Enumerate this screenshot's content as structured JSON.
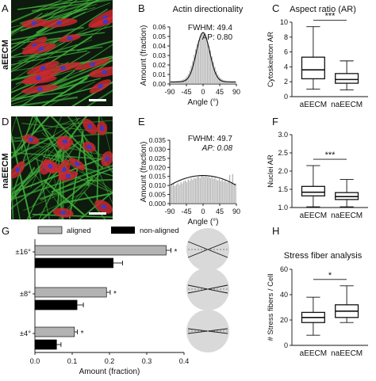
{
  "colors": {
    "bar_light": "#b3b3b3",
    "bar_dark": "#000000",
    "box_fill": "#ffffff",
    "micro_red": "#c8282e",
    "micro_green": "#3fae3a",
    "micro_blue": "#3a3ad0",
    "inset_circle": "#d9d9d9"
  },
  "panels": {
    "A": {
      "letter": "A",
      "side_label": "aEECM"
    },
    "D": {
      "letter": "D",
      "side_label": "naEECM"
    },
    "G": {
      "letter": "G"
    },
    "B": {
      "letter": "B",
      "title": "Actin directionality",
      "fwhm": "FWHM: 49.4",
      "ap": "AP: 0.80"
    },
    "E": {
      "letter": "E",
      "fwhm": "FWHM: 49.7",
      "ap": "AP: 0.08"
    },
    "C": {
      "letter": "C",
      "title": "Aspect ratio (AR)",
      "sig": "***"
    },
    "F": {
      "letter": "F",
      "sig": "***"
    },
    "H": {
      "letter": "H",
      "title": "Stress fiber analysis",
      "sig": "*"
    }
  },
  "chart_data": [
    {
      "panel": "B",
      "type": "bar",
      "title": "Actin directionality",
      "xlabel": "Angle (°)",
      "ylabel": "Amount (fraction)",
      "xlim": [
        -90,
        90
      ],
      "ylim": [
        0,
        0.06
      ],
      "xticks": [
        "-90",
        "-45",
        "0",
        "45",
        "90"
      ],
      "yticks": [
        "0.00",
        "0.01",
        "0.02",
        "0.03",
        "0.04",
        "0.05",
        "0.06"
      ],
      "x": [
        -88,
        -84,
        -80,
        -76,
        -72,
        -68,
        -64,
        -60,
        -56,
        -52,
        -48,
        -44,
        -40,
        -36,
        -32,
        -28,
        -24,
        -20,
        -16,
        -12,
        -8,
        -4,
        0,
        4,
        8,
        12,
        16,
        20,
        24,
        28,
        32,
        36,
        40,
        44,
        48,
        52,
        56,
        60,
        64,
        68,
        72,
        76,
        80,
        84,
        88
      ],
      "values": [
        0.0022,
        0.0024,
        0.0025,
        0.0026,
        0.0028,
        0.003,
        0.0033,
        0.0036,
        0.0044,
        0.005,
        0.0062,
        0.0078,
        0.0104,
        0.014,
        0.019,
        0.0244,
        0.031,
        0.0365,
        0.042,
        0.046,
        0.05,
        0.0535,
        0.054,
        0.052,
        0.0485,
        0.045,
        0.04,
        0.035,
        0.029,
        0.0235,
        0.018,
        0.0135,
        0.0098,
        0.0075,
        0.0058,
        0.0048,
        0.004,
        0.0035,
        0.003,
        0.0027,
        0.0025,
        0.0024,
        0.0022,
        0.0022,
        0.0021
      ]
    },
    {
      "panel": "E",
      "type": "bar",
      "xlabel": "Angle (°)",
      "ylabel": "Amount (fraction)",
      "xlim": [
        -90,
        90
      ],
      "ylim": [
        0,
        0.035
      ],
      "xticks": [
        "-90",
        "-45",
        "0",
        "45",
        "90"
      ],
      "yticks": [
        "0.000",
        "0.005",
        "0.010",
        "0.015",
        "0.020",
        "0.025",
        "0.030",
        "0.035"
      ],
      "x": [
        -88,
        -84,
        -80,
        -76,
        -72,
        -68,
        -64,
        -60,
        -56,
        -52,
        -48,
        -44,
        -40,
        -36,
        -32,
        -28,
        -24,
        -20,
        -16,
        -12,
        -8,
        -4,
        0,
        4,
        8,
        12,
        16,
        20,
        24,
        28,
        32,
        36,
        40,
        44,
        48,
        52,
        56,
        60,
        64,
        68,
        72,
        76,
        80,
        84,
        88
      ],
      "values": [
        0.0095,
        0.0102,
        0.011,
        0.0097,
        0.0106,
        0.0113,
        0.0104,
        0.0118,
        0.0112,
        0.0124,
        0.0128,
        0.0119,
        0.0134,
        0.0126,
        0.0139,
        0.0132,
        0.0143,
        0.0138,
        0.0147,
        0.015,
        0.0142,
        0.0155,
        0.0153,
        0.0148,
        0.0157,
        0.0146,
        0.0152,
        0.0141,
        0.0149,
        0.0137,
        0.0144,
        0.0133,
        0.0128,
        0.0136,
        0.0125,
        0.0131,
        0.0122,
        0.0127,
        0.0117,
        0.012,
        0.0158,
        0.0113,
        0.0163,
        0.0108,
        0.0112
      ]
    },
    {
      "panel": "C",
      "type": "box",
      "ylabel": "Cytoskeleton AR",
      "categories": [
        "aEECM",
        "naEECM"
      ],
      "ylim": [
        0,
        10
      ],
      "yticks": [
        "0",
        "2",
        "4",
        "6",
        "8",
        "10"
      ],
      "boxes": [
        {
          "min": 1.0,
          "q1": 2.4,
          "median": 3.6,
          "q3": 5.3,
          "max": 9.4
        },
        {
          "min": 0.9,
          "q1": 1.8,
          "median": 2.3,
          "q3": 3.1,
          "max": 4.8
        }
      ]
    },
    {
      "panel": "F",
      "type": "box",
      "ylabel": "Nuclei AR",
      "categories": [
        "aEECM",
        "naEECM"
      ],
      "ylim": [
        1.0,
        3.0
      ],
      "yticks": [
        "1.0",
        "1.5",
        "2.0",
        "2.5",
        "3.0"
      ],
      "boxes": [
        {
          "min": 1.02,
          "q1": 1.32,
          "median": 1.42,
          "q3": 1.58,
          "max": 2.15
        },
        {
          "min": 1.02,
          "q1": 1.22,
          "median": 1.3,
          "q3": 1.41,
          "max": 1.77
        }
      ]
    },
    {
      "panel": "H",
      "type": "box",
      "title": "Stress fiber analysis",
      "ylabel": "# Stress fibers / Cell",
      "categories": [
        "aEECM",
        "naEECM"
      ],
      "ylim": [
        0,
        60
      ],
      "yticks": [
        "0",
        "20",
        "40",
        "60"
      ],
      "boxes": [
        {
          "min": 8,
          "q1": 18,
          "median": 22,
          "q3": 26,
          "max": 38
        },
        {
          "min": 18,
          "q1": 22,
          "median": 27,
          "q3": 32,
          "max": 47
        }
      ]
    },
    {
      "panel": "G",
      "type": "bar",
      "orientation": "horizontal",
      "xlabel": "Amount (fraction)",
      "xlim": [
        0,
        0.4
      ],
      "xticks": [
        "0.0",
        "0.1",
        "0.2",
        "0.3",
        "0.4"
      ],
      "categories": [
        "±16°",
        "±8°",
        "±4°"
      ],
      "legend": [
        "aligned",
        "non-aligned"
      ],
      "series": [
        {
          "name": "aligned",
          "values": [
            0.352,
            0.192,
            0.106
          ],
          "errors": [
            0.013,
            0.01,
            0.008
          ]
        },
        {
          "name": "non-aligned",
          "values": [
            0.21,
            0.113,
            0.058
          ],
          "errors": [
            0.025,
            0.017,
            0.012
          ]
        }
      ],
      "annotations": [
        "*",
        "*",
        "*"
      ]
    }
  ]
}
